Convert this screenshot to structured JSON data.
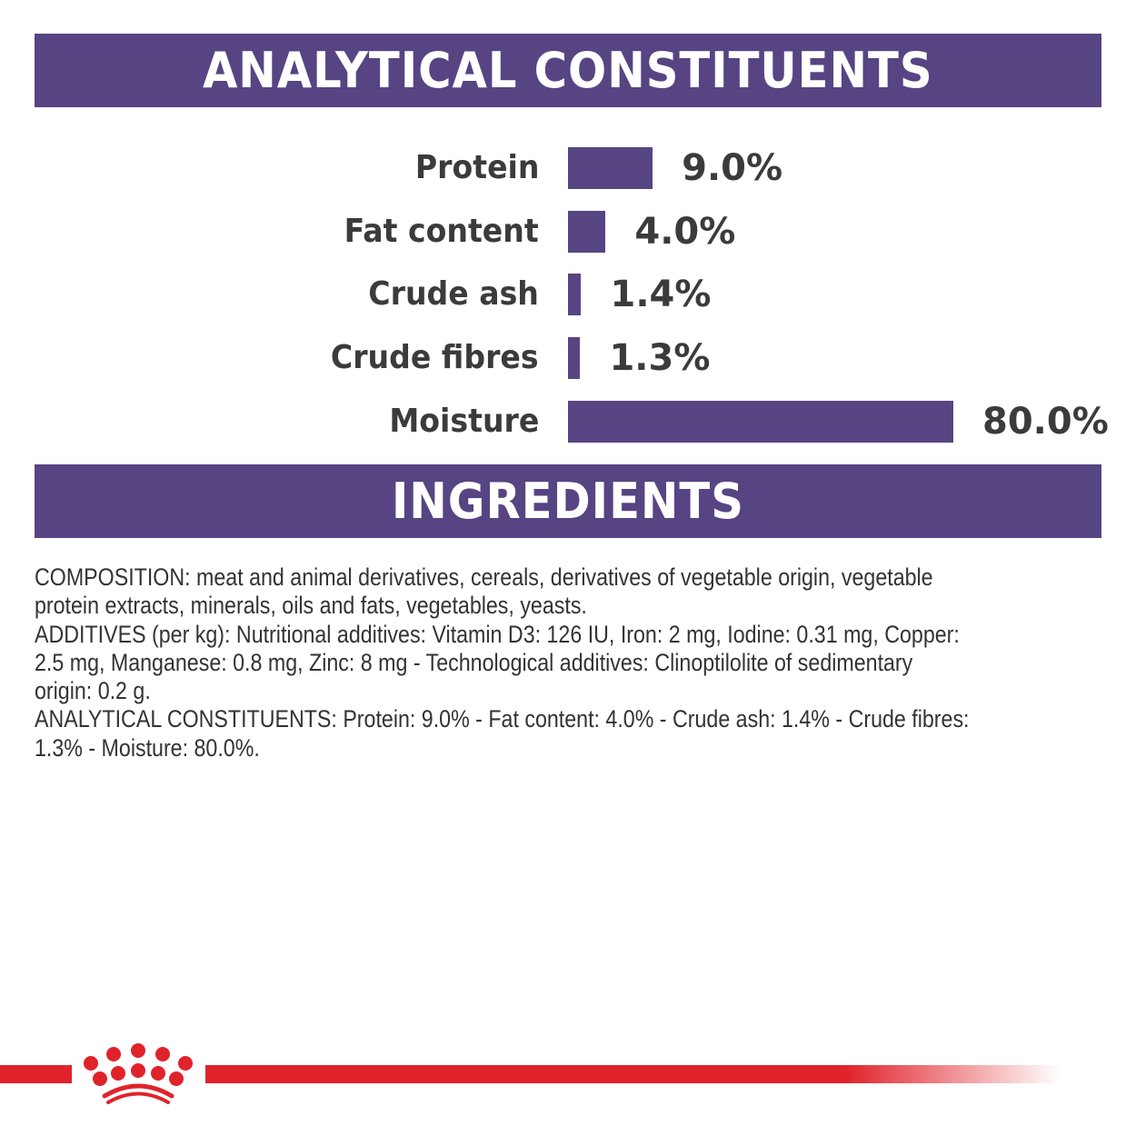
{
  "analytical_header": "ANALYTICAL CONSTITUENTS",
  "ingredients_header": "INGREDIENTS",
  "colors": {
    "brand_purple": "#574483",
    "brand_red": "#e0232a",
    "text": "#3b3b3b"
  },
  "constituents": [
    {
      "label": "Protein",
      "value": 9.0,
      "display": "9.0%"
    },
    {
      "label": "Fat content",
      "value": 4.0,
      "display": "4.0%"
    },
    {
      "label": "Crude ash",
      "value": 1.4,
      "display": "1.4%"
    },
    {
      "label": "Crude fibres",
      "value": 1.3,
      "display": "1.3%"
    },
    {
      "label": "Moisture",
      "value": 80.0,
      "display": "80.0%"
    }
  ],
  "ingredients_lines": [
    "COMPOSITION: meat and animal derivatives, cereals, derivatives of vegetable origin, vegetable",
    "protein extracts, minerals, oils and fats, vegetables, yeasts.",
    "ADDITIVES (per kg): Nutritional additives: Vitamin D3: 126 IU, Iron: 2 mg, Iodine: 0.31 mg, Copper:",
    "2.5 mg, Manganese: 0.8 mg, Zinc: 8 mg - Technological additives: Clinoptilolite of sedimentary",
    "origin: 0.2 g.",
    "ANALYTICAL CONSTITUENTS: Protein: 9.0% - Fat content: 4.0% - Crude ash: 1.4% - Crude fibres:",
    "1.3% - Moisture: 80.0%."
  ],
  "logo": "royal-canin-crown-logo"
}
